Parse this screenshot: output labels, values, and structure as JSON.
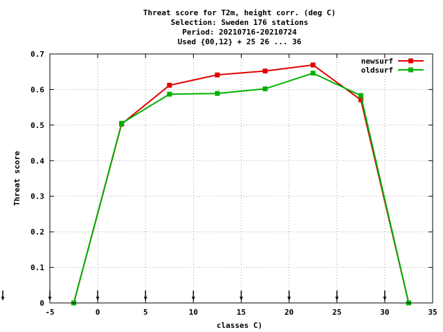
{
  "chart_data": {
    "type": "line",
    "title_lines": [
      "Threat score  for T2m, height corr. (deg C)",
      "Selection: Sweden    176 stations",
      "Period: 20210716-20210724",
      "Used {00,12} + 25 26 ... 36"
    ],
    "xlabel": "classes C)",
    "ylabel": "Threat score",
    "xlim": [
      -5,
      35
    ],
    "ylim": [
      0,
      0.7
    ],
    "xticks": [
      -5,
      0,
      5,
      10,
      15,
      20,
      25,
      30,
      35
    ],
    "yticks": [
      0,
      0.1,
      0.2,
      0.3,
      0.4,
      0.5,
      0.6,
      0.7
    ],
    "ytick_labels": [
      "0",
      "0.1",
      "0.2",
      "0.3",
      "0.4",
      "0.5",
      "0.6",
      "0.7"
    ],
    "grid": true,
    "legend_position": "top-right",
    "class_marker_x": [
      -10,
      -5,
      0,
      5,
      10,
      15,
      20,
      25,
      30
    ],
    "series": [
      {
        "name": "newsurf",
        "color": "#e00000",
        "x": [
          -2.5,
          2.5,
          7.5,
          12.5,
          17.5,
          22.5,
          27.5,
          32.5
        ],
        "y": [
          0.0,
          0.503,
          0.612,
          0.641,
          0.652,
          0.669,
          0.571,
          0.0
        ]
      },
      {
        "name": "oldsurf",
        "color": "#00b000",
        "x": [
          -2.5,
          2.5,
          7.5,
          12.5,
          17.5,
          22.5,
          27.5,
          32.5
        ],
        "y": [
          0.0,
          0.505,
          0.587,
          0.589,
          0.602,
          0.646,
          0.583,
          0.0
        ]
      }
    ]
  }
}
